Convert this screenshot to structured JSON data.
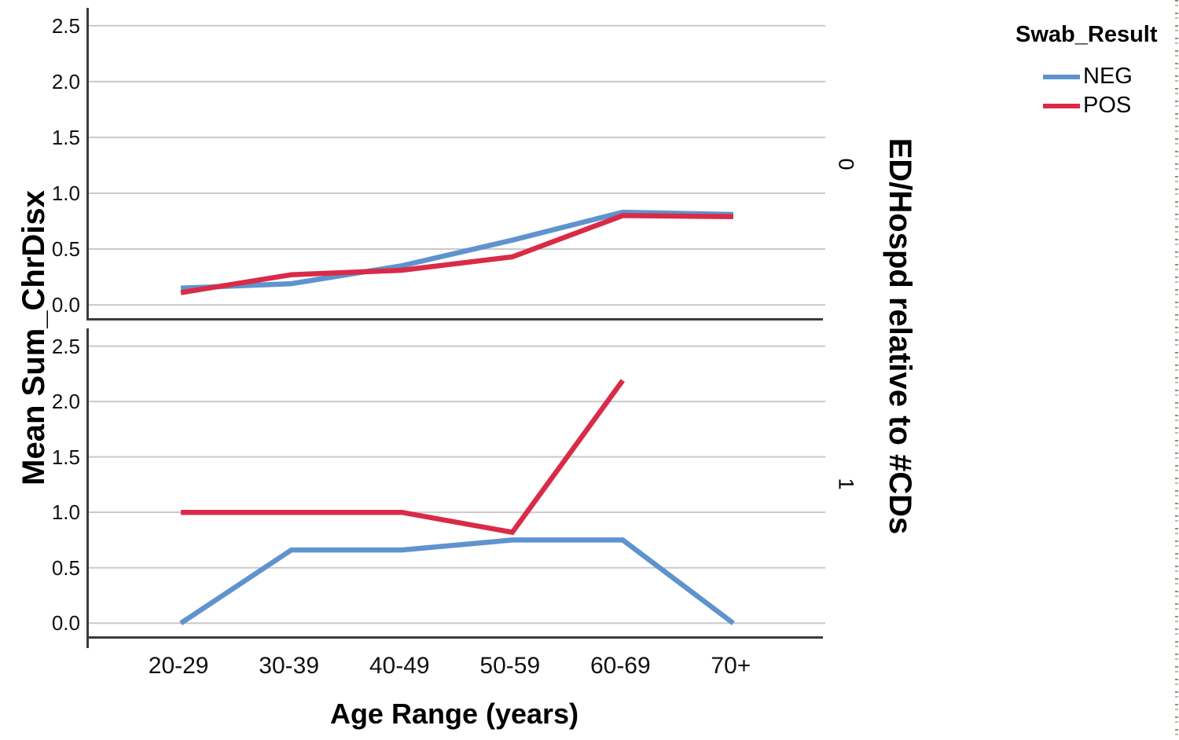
{
  "chart_data": {
    "type": "line",
    "categories": [
      "20-29",
      "30-39",
      "40-49",
      "50-59",
      "60-69",
      "70+"
    ],
    "xlabel": "Age Range (years)",
    "ylabel": "Mean Sum_ChrDisx",
    "panel_variable_label": "ED/Hospd relative to #CDs",
    "ytick_labels": [
      "0.0",
      "0.5",
      "1.0",
      "1.5",
      "2.0",
      "2.5"
    ],
    "ytick_values": [
      0.0,
      0.5,
      1.0,
      1.5,
      2.0,
      2.5
    ],
    "ylim": [
      -0.14,
      2.66
    ],
    "grid": true,
    "legend": {
      "title": "Swab_Result",
      "position": "top-right",
      "entries": [
        {
          "label": "NEG",
          "color": "#5E93CE"
        },
        {
          "label": "POS",
          "color": "#D92B47"
        }
      ]
    },
    "panels": [
      {
        "label": "0",
        "series": [
          {
            "name": "NEG",
            "color": "#5E93CE",
            "values": [
              0.15,
              0.19,
              0.35,
              0.58,
              0.83,
              0.81
            ]
          },
          {
            "name": "POS",
            "color": "#D92B47",
            "values": [
              0.11,
              0.27,
              0.31,
              0.43,
              0.8,
              0.79
            ]
          }
        ]
      },
      {
        "label": "1",
        "series": [
          {
            "name": "NEG",
            "color": "#5E93CE",
            "values": [
              0.0,
              0.66,
              0.66,
              0.75,
              0.75,
              0.0
            ]
          },
          {
            "name": "POS",
            "color": "#D92B47",
            "values": [
              1.0,
              1.0,
              1.0,
              0.82,
              2.19,
              null
            ]
          }
        ]
      }
    ]
  },
  "titles": {
    "y_axis": "Mean Sum_ChrDisx",
    "x_axis": "Age Range (years)",
    "panel_variable": "ED/Hospd relative to #CDs"
  },
  "legend": {
    "title": "Swab_Result"
  },
  "colors": {
    "background": "#FFFFFF",
    "gridline": "#C9C9C9",
    "axis": "#3C3C3C",
    "neg_line": "#5E93CE",
    "pos_line": "#D92B47",
    "selection_border": "#8F8F73"
  }
}
